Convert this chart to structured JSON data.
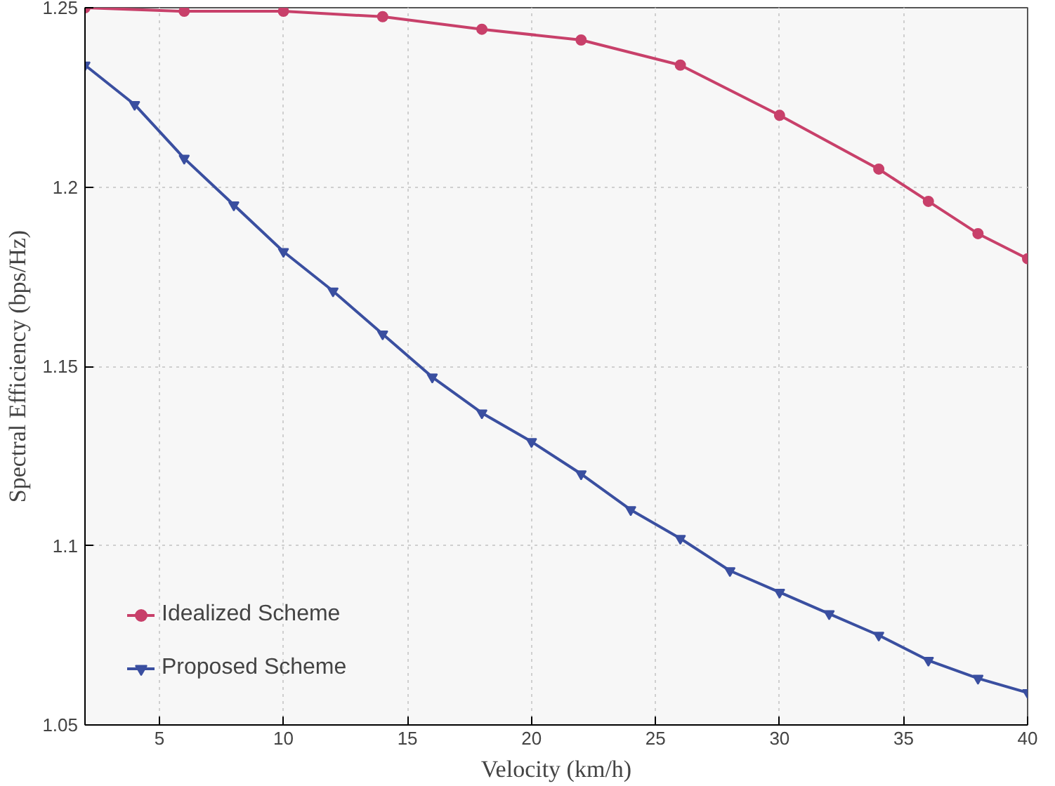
{
  "chart_data": {
    "type": "line",
    "xlabel": "Velocity (km/h)",
    "ylabel": "Spectral Efficiency (bps/Hz)",
    "xlim": [
      2,
      40
    ],
    "ylim": [
      1.05,
      1.25
    ],
    "xticks": [
      5,
      10,
      15,
      20,
      25,
      30,
      35,
      40
    ],
    "yticks": [
      1.05,
      1.1,
      1.15,
      1.2,
      1.25
    ],
    "grid": true,
    "legend": "bottom left",
    "line_style": "solid",
    "series": [
      {
        "name": "Idealized Scheme",
        "color": "#c8406a",
        "marker": "circle",
        "x": [
          2,
          6,
          10,
          14,
          18,
          22,
          26,
          30,
          34,
          36,
          38,
          40
        ],
        "values": [
          1.25,
          1.249,
          1.249,
          1.2475,
          1.244,
          1.241,
          1.234,
          1.22,
          1.205,
          1.196,
          1.187,
          1.18
        ]
      },
      {
        "name": "Proposed Scheme",
        "color": "#3a4fa0",
        "marker": "triangle",
        "x": [
          2,
          4,
          6,
          8,
          10,
          12,
          14,
          16,
          18,
          20,
          22,
          24,
          26,
          28,
          30,
          32,
          34,
          36,
          38,
          40
        ],
        "values": [
          1.234,
          1.223,
          1.208,
          1.195,
          1.182,
          1.171,
          1.159,
          1.147,
          1.137,
          1.129,
          1.12,
          1.11,
          1.102,
          1.093,
          1.087,
          1.081,
          1.075,
          1.068,
          1.063,
          1.059
        ]
      }
    ]
  }
}
